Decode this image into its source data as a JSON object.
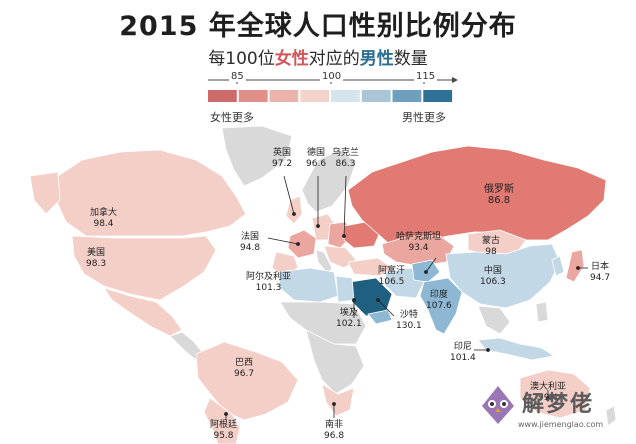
{
  "title": "2015 年全球人口性别比例分布",
  "subtitle": {
    "prefix": "每100位",
    "female": "女性",
    "middle": "对应的",
    "male": "男性",
    "suffix": "数量"
  },
  "scale": {
    "ticks": [
      "85",
      "100",
      "115"
    ],
    "left_note": "女性更多",
    "right_note": "男性更多",
    "colors": [
      "#cd6a6a",
      "#df8f88",
      "#eab4ad",
      "#f3d3cc",
      "#d6e4ec",
      "#a9c6d8",
      "#6e9fbe",
      "#2f7196"
    ]
  },
  "map_colors": {
    "land": "#d9d9d9",
    "russia": "#e07a72",
    "female_light": "#f4cfc8",
    "female_mid": "#eba79f",
    "male_light": "#c3d8e6",
    "male_mid": "#8db7d2",
    "male_dark": "#2a6e8f",
    "gulf": "#1f5f80"
  },
  "countries": [
    {
      "name": "加拿大",
      "value": "98.4"
    },
    {
      "name": "美国",
      "value": "98.3"
    },
    {
      "name": "英国",
      "value": "97.2"
    },
    {
      "name": "德国",
      "value": "96.6"
    },
    {
      "name": "乌克兰",
      "value": "86.3"
    },
    {
      "name": "俄罗斯",
      "value": "86.8"
    },
    {
      "name": "法国",
      "value": "94.8"
    },
    {
      "name": "哈萨克斯坦",
      "value": "93.4"
    },
    {
      "name": "蒙古",
      "value": "98"
    },
    {
      "name": "阿富汗",
      "value": "106.5"
    },
    {
      "name": "中国",
      "value": "106.3"
    },
    {
      "name": "日本",
      "value": "94.7"
    },
    {
      "name": "阿尔及利亚",
      "value": "101.3"
    },
    {
      "name": "印度",
      "value": "107.6"
    },
    {
      "name": "埃及",
      "value": "102.1"
    },
    {
      "name": "沙特",
      "value": "130.1"
    },
    {
      "name": "印尼",
      "value": "101.4"
    },
    {
      "name": "巴西",
      "value": "96.7"
    },
    {
      "name": "澳大利亚",
      "value": "99.4"
    },
    {
      "name": "阿根廷",
      "value": "95.8"
    },
    {
      "name": "南非",
      "value": "96.8"
    }
  ],
  "watermark": {
    "text": "解梦佬",
    "url": "www.jiemenglao.com"
  }
}
